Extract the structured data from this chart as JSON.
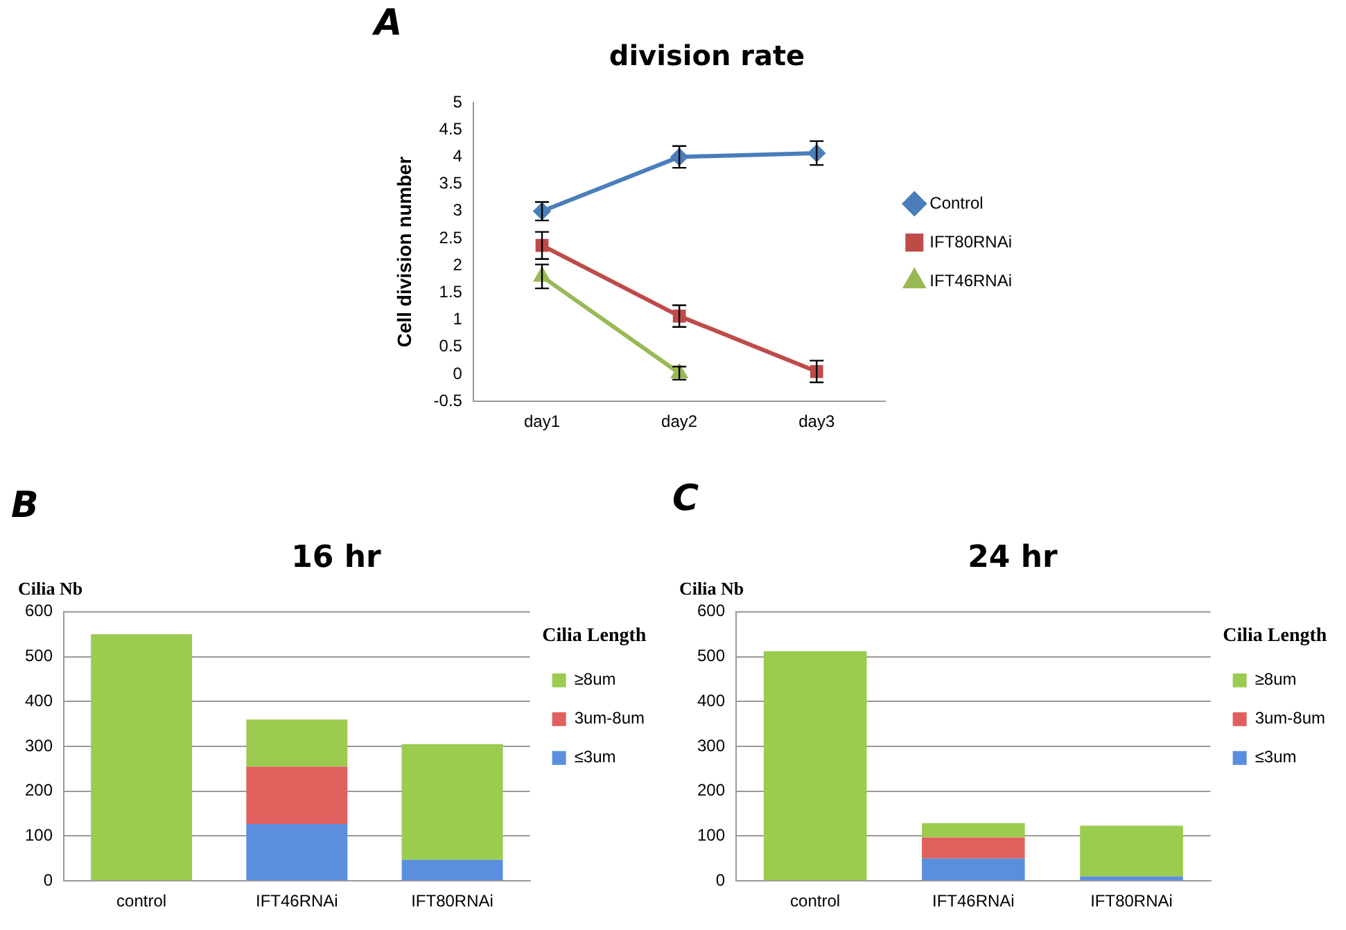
{
  "chart_data": [
    {
      "type": "line",
      "title": "division rate",
      "ylabel": "Cell division number",
      "annotations": [
        "A"
      ],
      "categories": [
        "day1",
        "day2",
        "day3"
      ],
      "series": [
        {
          "name": "Control",
          "color": "#4a7ebb",
          "marker": "diamond",
          "values": [
            3.0,
            4.0,
            4.07
          ],
          "errors": [
            0.17,
            0.2,
            0.22
          ]
        },
        {
          "name": "IFT80RNAi",
          "color": "#be4b48",
          "marker": "square",
          "values": [
            2.37,
            1.07,
            0.05
          ],
          "errors": [
            0.25,
            0.2,
            0.2
          ]
        },
        {
          "name": "IFT46RNAi",
          "color": "#98b954",
          "marker": "triangle",
          "values": [
            1.8,
            0.02,
            null
          ],
          "errors": [
            0.22,
            0.12,
            null
          ]
        }
      ],
      "ylim": [
        -0.5,
        5
      ],
      "yticks": [
        -0.5,
        0,
        0.5,
        1,
        1.5,
        2,
        2.5,
        3,
        3.5,
        4,
        4.5,
        5
      ],
      "grid": false,
      "legend": "right"
    },
    {
      "type": "bar",
      "stacked": true,
      "title": "16 hr",
      "ylabel": "Cilia Nb",
      "legend_title": "Cilia Length",
      "annotations": [
        "B"
      ],
      "categories": [
        "control",
        "IFT46RNAi",
        "IFT80RNAi"
      ],
      "series": [
        {
          "name": "≤3um",
          "color": "#5b8fde",
          "values": [
            0,
            127,
            47
          ]
        },
        {
          "name": "3um-8um",
          "color": "#e0605e",
          "values": [
            0,
            128,
            0
          ]
        },
        {
          "name": "≥8um",
          "color": "#9bcb4f",
          "values": [
            550,
            105,
            258
          ]
        }
      ],
      "ylim": [
        0,
        600
      ],
      "yticks": [
        0,
        100,
        200,
        300,
        400,
        500,
        600
      ],
      "grid": "y",
      "legend": "right"
    },
    {
      "type": "bar",
      "stacked": true,
      "title": "24 hr",
      "ylabel": "Cilia Nb",
      "legend_title": "Cilia Length",
      "annotations": [
        "C"
      ],
      "categories": [
        "control",
        "IFT46RNAi",
        "IFT80RNAi"
      ],
      "series": [
        {
          "name": "≤3um",
          "color": "#5b8fde",
          "values": [
            0,
            50,
            10
          ]
        },
        {
          "name": "3um-8um",
          "color": "#e0605e",
          "values": [
            0,
            47,
            0
          ]
        },
        {
          "name": "≥8um",
          "color": "#9bcb4f",
          "values": [
            512,
            32,
            113
          ]
        }
      ],
      "ylim": [
        0,
        600
      ],
      "yticks": [
        0,
        100,
        200,
        300,
        400,
        500,
        600
      ],
      "grid": "y",
      "legend": "right"
    }
  ]
}
